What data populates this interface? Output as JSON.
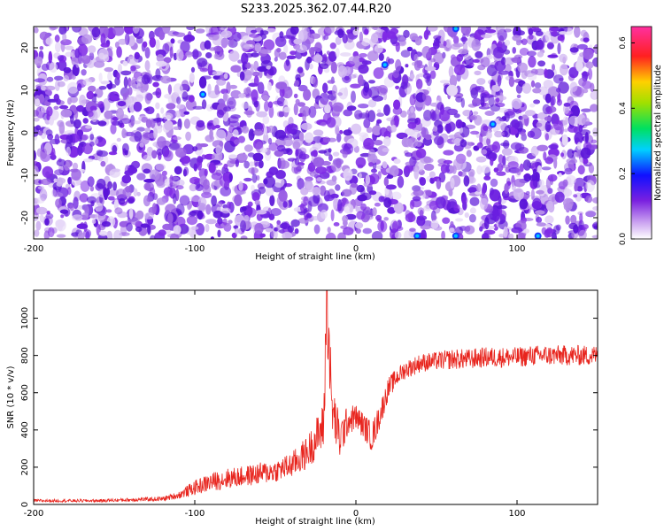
{
  "title": "S233.2025.362.07.44.R20",
  "colors": {
    "snr_line": "#e8251e",
    "spectrogram_bg": "#ffffff",
    "spectrogram_low": "#d8c8f0",
    "spectrogram_mid": "#6a1ee0",
    "spectrogram_high": "#3a10c8"
  },
  "chart_data": [
    {
      "type": "heatmap",
      "xlabel": "Height of straight line (km)",
      "ylabel": "Frequency (Hz)",
      "xlim": [
        -200,
        150
      ],
      "ylim": [
        -25,
        25
      ],
      "xticks": [
        -200,
        -100,
        0,
        100
      ],
      "yticks": [
        -20,
        -10,
        0,
        10,
        20
      ],
      "grid": false,
      "colorbar": {
        "label": "Normalized spectral amplitude",
        "range": [
          0.0,
          0.65
        ],
        "ticks": [
          0.0,
          0.2,
          0.4,
          0.6
        ],
        "colormap": "white-purple-blue-cyan-green-yellow-red-magenta"
      },
      "description_values": "Noisy speckle field, mostly amplitudes 0.0–0.15 with sparse blue/cyan hot spots near x≈-95,y≈9; x≈18,y≈16; x≈62,y≈-24; x≈62,y≈24; x≈85,y≈2"
    },
    {
      "type": "line",
      "xlabel": "Height of straight line (km)",
      "ylabel": "SNR (10 * v/v)",
      "xlim": [
        -200,
        150
      ],
      "ylim": [
        0,
        1150
      ],
      "xticks": [
        -200,
        -100,
        0,
        100
      ],
      "yticks": [
        0,
        200,
        400,
        600,
        800,
        1000
      ],
      "grid": false,
      "series": [
        {
          "x": [
            -200,
            -180,
            -160,
            -140,
            -120,
            -110,
            -100,
            -90,
            -80,
            -70,
            -60,
            -50,
            -40,
            -30,
            -25,
            -20,
            -18,
            -15,
            -10,
            -5,
            0,
            5,
            10,
            15,
            20,
            25,
            30,
            40,
            50,
            60,
            70,
            80,
            90,
            100,
            110,
            120,
            130,
            140,
            150
          ],
          "y": [
            20,
            20,
            20,
            25,
            30,
            50,
            90,
            120,
            140,
            150,
            165,
            180,
            210,
            280,
            350,
            420,
            1150,
            520,
            350,
            450,
            470,
            420,
            360,
            480,
            620,
            680,
            720,
            760,
            770,
            780,
            780,
            790,
            790,
            790,
            800,
            800,
            800,
            800,
            800
          ],
          "noise": [
            8,
            8,
            8,
            10,
            12,
            20,
            40,
            50,
            55,
            55,
            60,
            60,
            70,
            90,
            110,
            130,
            300,
            150,
            120,
            80,
            70,
            70,
            80,
            70,
            60,
            50,
            50,
            50,
            50,
            55,
            55,
            55,
            55,
            55,
            55,
            55,
            55,
            55,
            55
          ]
        }
      ]
    }
  ]
}
